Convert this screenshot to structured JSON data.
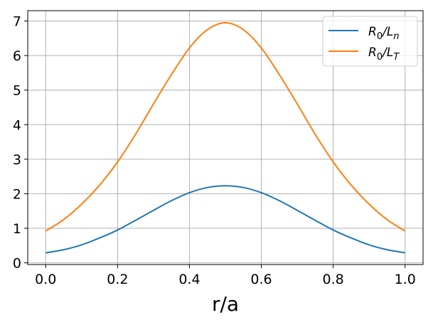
{
  "chart_data": {
    "type": "line",
    "xlabel": "r/a",
    "ylabel": "",
    "xlim": [
      -0.05,
      1.05
    ],
    "ylim": [
      -0.05,
      7.3
    ],
    "xticks": [
      "0.0",
      "0.2",
      "0.4",
      "0.6",
      "0.8",
      "1.0"
    ],
    "yticks": [
      "0",
      "1",
      "2",
      "3",
      "4",
      "5",
      "6",
      "7"
    ],
    "grid": true,
    "legend_position": "top-right",
    "series": [
      {
        "name": "R0/Ln",
        "legend": {
          "main": "R",
          "sub1": "0",
          "mid": "/L",
          "sub2": "n"
        },
        "color": "#1f77b4",
        "x": [
          0.0,
          0.05,
          0.1,
          0.15,
          0.2,
          0.25,
          0.3,
          0.35,
          0.4,
          0.45,
          0.5,
          0.55,
          0.6,
          0.65,
          0.7,
          0.75,
          0.8,
          0.85,
          0.9,
          0.95,
          1.0
        ],
        "values": [
          0.29,
          0.38,
          0.52,
          0.72,
          0.95,
          1.23,
          1.52,
          1.8,
          2.03,
          2.18,
          2.23,
          2.18,
          2.03,
          1.8,
          1.52,
          1.23,
          0.95,
          0.72,
          0.52,
          0.38,
          0.29
        ]
      },
      {
        "name": "R0/LT",
        "legend": {
          "main": "R",
          "sub1": "0",
          "mid": "/L",
          "sub2": "T"
        },
        "color": "#ff7f0e",
        "x": [
          0.0,
          0.05,
          0.1,
          0.15,
          0.2,
          0.25,
          0.3,
          0.35,
          0.4,
          0.45,
          0.5,
          0.55,
          0.6,
          0.65,
          0.7,
          0.75,
          0.8,
          0.85,
          0.9,
          0.95,
          1.0
        ],
        "values": [
          0.92,
          1.25,
          1.7,
          2.25,
          2.92,
          3.72,
          4.6,
          5.45,
          6.22,
          6.75,
          6.95,
          6.75,
          6.22,
          5.45,
          4.6,
          3.72,
          2.92,
          2.25,
          1.7,
          1.25,
          0.92
        ]
      }
    ]
  }
}
